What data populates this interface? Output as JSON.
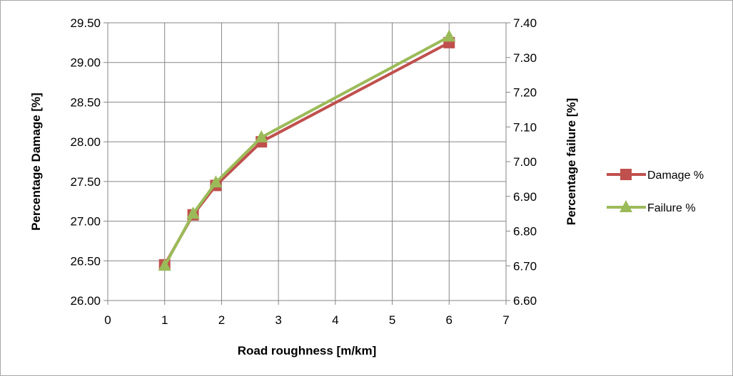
{
  "chart_data": {
    "type": "line",
    "xlabel": "Road roughness [m/km]",
    "ylabel": "Percentage Damage [%]",
    "y2label": "Percentage failure [%]",
    "xlim": [
      0,
      7
    ],
    "ylim": [
      26.0,
      29.5
    ],
    "y2lim": [
      6.6,
      7.4
    ],
    "x_ticks": [
      "0",
      "1",
      "2",
      "3",
      "4",
      "5",
      "6",
      "7"
    ],
    "y_ticks": [
      "26.00",
      "26.50",
      "27.00",
      "27.50",
      "28.00",
      "28.50",
      "29.00",
      "29.50"
    ],
    "y2_ticks": [
      "6.60",
      "6.70",
      "6.80",
      "6.90",
      "7.00",
      "7.10",
      "7.20",
      "7.30",
      "7.40"
    ],
    "grid": true,
    "legend_position": "right",
    "series": [
      {
        "name": "Damage %",
        "axis": "left",
        "color": "#c0504d",
        "marker": "square",
        "x": [
          1,
          1.5,
          1.9,
          2.7,
          6
        ],
        "values": [
          26.45,
          27.08,
          27.45,
          28.0,
          29.25
        ]
      },
      {
        "name": "Failure %",
        "axis": "right",
        "color": "#9bbb59",
        "marker": "triangle",
        "x": [
          1,
          1.5,
          1.9,
          2.7,
          6
        ],
        "values": [
          6.7,
          6.85,
          6.94,
          7.07,
          7.36
        ]
      }
    ]
  }
}
